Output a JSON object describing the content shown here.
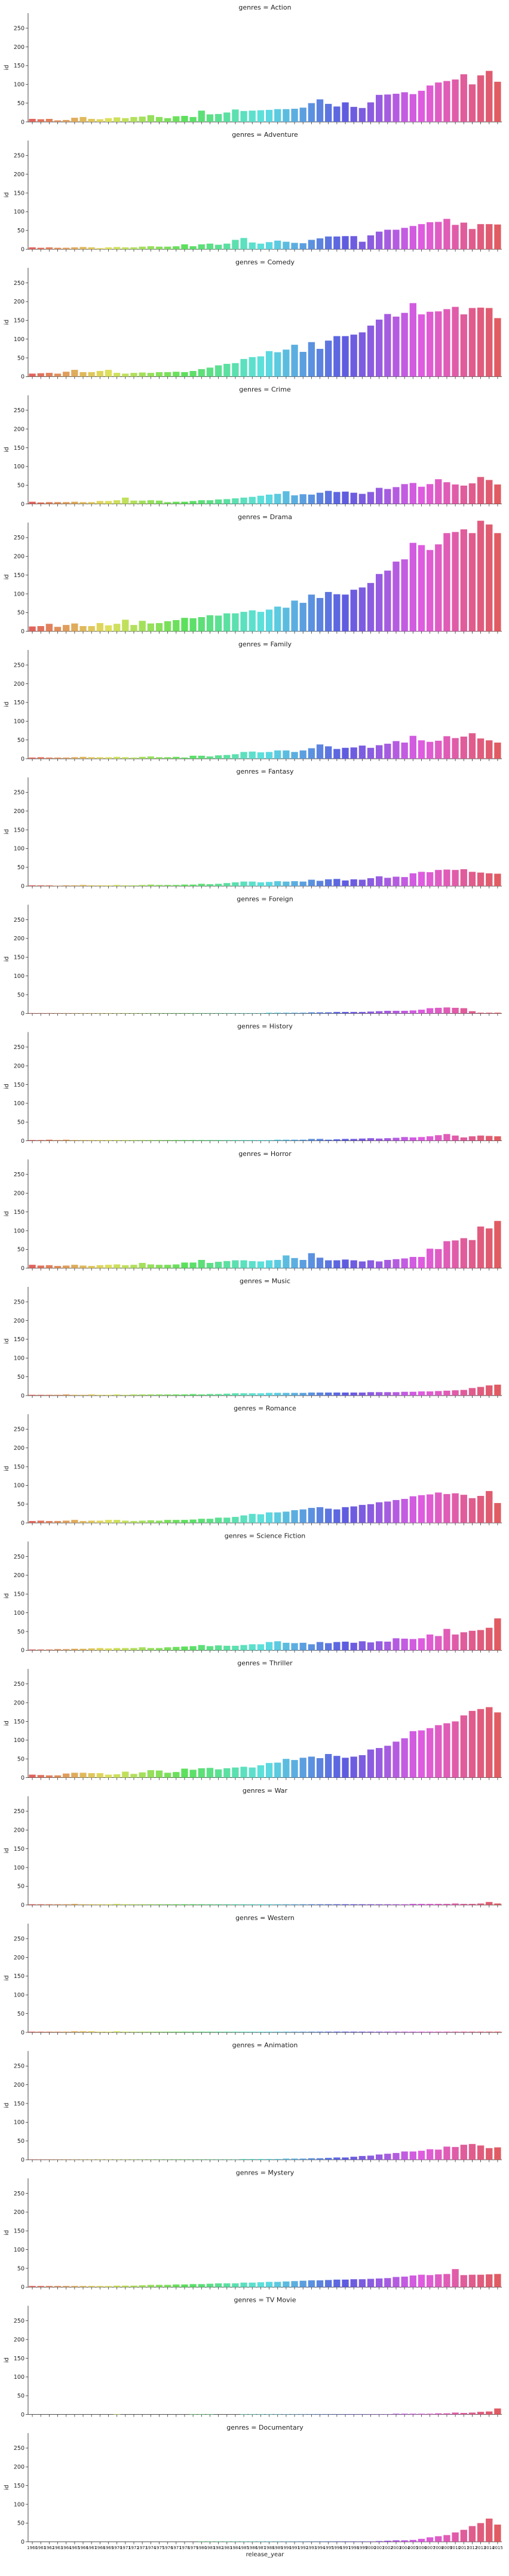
{
  "chart_data": {
    "type": "bar",
    "facet_by": "genres",
    "facet_title_prefix": "genres = ",
    "xlabel": "release_year",
    "ylabel": "id",
    "ylim": [
      0,
      290
    ],
    "yticks": [
      0,
      50,
      100,
      150,
      200,
      250
    ],
    "categories": [
      "1960",
      "1961",
      "1962",
      "1963",
      "1964",
      "1965",
      "1966",
      "1967",
      "1968",
      "1969",
      "1970",
      "1971",
      "1972",
      "1973",
      "1974",
      "1975",
      "1976",
      "1977",
      "1978",
      "1979",
      "1980",
      "1981",
      "1982",
      "1983",
      "1984",
      "1985",
      "1986",
      "1987",
      "1988",
      "1989",
      "1990",
      "1991",
      "1992",
      "1993",
      "1994",
      "1995",
      "1996",
      "1997",
      "1998",
      "1999",
      "2000",
      "2001",
      "2002",
      "2003",
      "2004",
      "2005",
      "2006",
      "2007",
      "2008",
      "2009",
      "2010",
      "2011",
      "2012",
      "2013",
      "2014",
      "2015"
    ],
    "facets": [
      {
        "genre": "Action",
        "values": [
          8,
          7,
          8,
          4,
          5,
          11,
          13,
          8,
          7,
          10,
          12,
          10,
          13,
          14,
          18,
          13,
          10,
          15,
          16,
          13,
          30,
          20,
          21,
          25,
          33,
          29,
          30,
          31,
          32,
          34,
          34,
          35,
          38,
          50,
          60,
          48,
          41,
          52,
          40,
          37,
          52,
          72,
          73,
          75,
          79,
          74,
          83,
          97,
          105,
          109,
          113,
          127,
          100,
          124,
          136,
          107
        ]
      },
      {
        "genre": "Adventure",
        "values": [
          5,
          4,
          5,
          4,
          4,
          5,
          6,
          5,
          3,
          5,
          6,
          5,
          5,
          7,
          8,
          7,
          7,
          8,
          13,
          8,
          13,
          15,
          12,
          15,
          25,
          30,
          18,
          15,
          19,
          23,
          20,
          17,
          16,
          25,
          29,
          34,
          34,
          35,
          35,
          20,
          37,
          47,
          52,
          52,
          57,
          62,
          67,
          72,
          73,
          81,
          65,
          71,
          54,
          67,
          67,
          66
        ]
      },
      {
        "genre": "Comedy",
        "values": [
          8,
          9,
          10,
          8,
          13,
          18,
          12,
          12,
          15,
          18,
          10,
          8,
          10,
          11,
          10,
          12,
          12,
          13,
          12,
          15,
          20,
          24,
          30,
          34,
          36,
          47,
          52,
          54,
          68,
          65,
          72,
          85,
          66,
          92,
          74,
          96,
          108,
          108,
          112,
          118,
          136,
          152,
          167,
          160,
          170,
          196,
          166,
          173,
          174,
          180,
          186,
          166,
          183,
          184,
          183,
          156
        ]
      },
      {
        "genre": "Crime",
        "values": [
          6,
          4,
          5,
          5,
          5,
          6,
          5,
          5,
          8,
          8,
          10,
          17,
          9,
          9,
          10,
          9,
          5,
          6,
          6,
          8,
          10,
          10,
          12,
          13,
          15,
          17,
          19,
          22,
          25,
          27,
          34,
          23,
          26,
          25,
          30,
          35,
          32,
          33,
          30,
          27,
          32,
          43,
          40,
          45,
          53,
          56,
          46,
          53,
          66,
          58,
          52,
          49,
          55,
          72,
          64,
          52
        ]
      },
      {
        "genre": "Drama",
        "values": [
          13,
          14,
          20,
          12,
          17,
          21,
          14,
          14,
          22,
          16,
          20,
          31,
          17,
          28,
          21,
          22,
          27,
          30,
          36,
          35,
          38,
          43,
          42,
          48,
          48,
          52,
          56,
          52,
          58,
          66,
          63,
          82,
          76,
          98,
          89,
          105,
          99,
          98,
          111,
          117,
          129,
          153,
          162,
          186,
          192,
          236,
          230,
          217,
          232,
          262,
          265,
          272,
          262,
          295,
          285,
          262
        ]
      },
      {
        "genre": "Family",
        "values": [
          3,
          4,
          3,
          3,
          3,
          4,
          5,
          4,
          4,
          4,
          5,
          4,
          3,
          5,
          6,
          4,
          4,
          5,
          3,
          8,
          8,
          6,
          9,
          10,
          12,
          18,
          19,
          17,
          18,
          22,
          22,
          18,
          22,
          28,
          38,
          33,
          26,
          29,
          30,
          35,
          29,
          36,
          40,
          47,
          43,
          61,
          49,
          45,
          48,
          60,
          55,
          59,
          68,
          54,
          49,
          43
        ]
      },
      {
        "genre": "Fantasy",
        "values": [
          2,
          2,
          2,
          1,
          2,
          2,
          3,
          2,
          2,
          2,
          3,
          2,
          2,
          3,
          4,
          3,
          3,
          3,
          4,
          4,
          6,
          5,
          6,
          8,
          10,
          12,
          12,
          10,
          11,
          13,
          12,
          13,
          12,
          17,
          14,
          18,
          19,
          15,
          18,
          17,
          21,
          26,
          22,
          25,
          24,
          34,
          38,
          37,
          43,
          44,
          43,
          45,
          38,
          36,
          34,
          33
        ]
      },
      {
        "genre": "Foreign",
        "values": [
          1,
          1,
          1,
          1,
          1,
          1,
          1,
          1,
          1,
          1,
          1,
          1,
          1,
          1,
          1,
          1,
          1,
          1,
          1,
          1,
          1,
          1,
          1,
          1,
          1,
          1,
          1,
          1,
          2,
          2,
          2,
          2,
          2,
          3,
          3,
          3,
          4,
          4,
          4,
          4,
          5,
          6,
          7,
          7,
          7,
          8,
          10,
          14,
          15,
          16,
          15,
          14,
          6,
          2,
          2,
          2
        ]
      },
      {
        "genre": "History",
        "values": [
          2,
          2,
          3,
          2,
          3,
          2,
          2,
          2,
          2,
          2,
          2,
          2,
          2,
          2,
          2,
          2,
          2,
          2,
          2,
          2,
          2,
          2,
          2,
          2,
          2,
          2,
          2,
          2,
          2,
          3,
          3,
          3,
          3,
          5,
          5,
          3,
          4,
          5,
          5,
          6,
          7,
          6,
          7,
          8,
          10,
          9,
          10,
          12,
          15,
          18,
          14,
          9,
          12,
          14,
          13,
          12
        ]
      },
      {
        "genre": "Horror",
        "values": [
          9,
          7,
          8,
          6,
          7,
          9,
          7,
          6,
          8,
          9,
          10,
          8,
          9,
          14,
          10,
          9,
          9,
          10,
          15,
          15,
          22,
          14,
          17,
          19,
          21,
          21,
          19,
          18,
          21,
          22,
          34,
          27,
          22,
          40,
          28,
          21,
          21,
          23,
          21,
          18,
          21,
          18,
          22,
          24,
          26,
          30,
          30,
          52,
          51,
          72,
          74,
          80,
          75,
          111,
          106,
          126
        ]
      },
      {
        "genre": "Music",
        "values": [
          2,
          2,
          2,
          2,
          3,
          2,
          2,
          3,
          2,
          2,
          3,
          2,
          3,
          3,
          3,
          3,
          3,
          3,
          3,
          4,
          3,
          4,
          4,
          5,
          6,
          6,
          6,
          6,
          7,
          7,
          7,
          7,
          7,
          8,
          8,
          8,
          8,
          8,
          8,
          8,
          9,
          9,
          9,
          9,
          10,
          10,
          11,
          11,
          12,
          13,
          14,
          15,
          20,
          23,
          27,
          29
        ]
      },
      {
        "genre": "Romance",
        "values": [
          5,
          6,
          5,
          5,
          6,
          8,
          5,
          6,
          6,
          8,
          8,
          6,
          5,
          6,
          7,
          6,
          8,
          8,
          8,
          9,
          11,
          11,
          14,
          14,
          16,
          20,
          24,
          23,
          28,
          28,
          30,
          34,
          36,
          40,
          42,
          38,
          36,
          42,
          44,
          48,
          50,
          55,
          57,
          61,
          64,
          71,
          74,
          76,
          81,
          77,
          79,
          75,
          66,
          72,
          85,
          53
        ]
      },
      {
        "genre": "Science Fiction",
        "values": [
          2,
          2,
          2,
          3,
          3,
          4,
          4,
          5,
          6,
          5,
          6,
          6,
          6,
          8,
          6,
          6,
          8,
          9,
          10,
          11,
          14,
          11,
          13,
          12,
          12,
          14,
          16,
          16,
          22,
          24,
          20,
          19,
          20,
          16,
          22,
          19,
          22,
          23,
          20,
          24,
          21,
          24,
          23,
          32,
          31,
          30,
          32,
          42,
          38,
          57,
          42,
          48,
          52,
          54,
          60,
          85
        ]
      },
      {
        "genre": "Thriller",
        "values": [
          8,
          7,
          6,
          6,
          11,
          13,
          13,
          12,
          12,
          8,
          9,
          16,
          10,
          14,
          20,
          19,
          13,
          15,
          24,
          21,
          25,
          26,
          22,
          25,
          27,
          29,
          27,
          33,
          39,
          40,
          50,
          47,
          53,
          56,
          52,
          63,
          58,
          53,
          56,
          60,
          75,
          79,
          85,
          96,
          105,
          124,
          126,
          132,
          140,
          145,
          150,
          166,
          178,
          183,
          188,
          174
        ]
      },
      {
        "genre": "War",
        "values": [
          2,
          2,
          2,
          2,
          2,
          3,
          2,
          2,
          2,
          2,
          3,
          2,
          2,
          2,
          2,
          2,
          2,
          2,
          2,
          2,
          2,
          2,
          2,
          2,
          2,
          2,
          2,
          2,
          2,
          2,
          2,
          2,
          2,
          2,
          2,
          2,
          2,
          2,
          2,
          2,
          2,
          2,
          2,
          2,
          2,
          3,
          3,
          3,
          3,
          3,
          4,
          3,
          3,
          4,
          8,
          4
        ]
      },
      {
        "genre": "Western",
        "values": [
          2,
          2,
          2,
          2,
          2,
          3,
          3,
          3,
          2,
          2,
          3,
          2,
          2,
          2,
          2,
          2,
          2,
          2,
          2,
          2,
          2,
          2,
          2,
          2,
          2,
          2,
          2,
          2,
          2,
          2,
          2,
          2,
          2,
          2,
          2,
          2,
          2,
          2,
          2,
          2,
          2,
          2,
          2,
          2,
          2,
          2,
          2,
          2,
          2,
          2,
          2,
          2,
          2,
          2,
          2,
          2
        ]
      },
      {
        "genre": "Animation",
        "values": [
          1,
          1,
          1,
          1,
          1,
          1,
          1,
          1,
          1,
          1,
          1,
          1,
          1,
          1,
          1,
          1,
          1,
          1,
          1,
          1,
          1,
          1,
          1,
          1,
          1,
          2,
          2,
          2,
          2,
          2,
          3,
          3,
          3,
          4,
          4,
          5,
          6,
          6,
          8,
          10,
          11,
          14,
          16,
          18,
          22,
          22,
          24,
          28,
          27,
          35,
          34,
          40,
          42,
          38,
          31,
          33
        ]
      },
      {
        "genre": "Mystery",
        "values": [
          3,
          3,
          3,
          3,
          3,
          3,
          3,
          3,
          3,
          3,
          4,
          4,
          4,
          5,
          6,
          6,
          6,
          7,
          7,
          8,
          8,
          9,
          10,
          10,
          10,
          12,
          12,
          13,
          14,
          14,
          15,
          16,
          17,
          18,
          18,
          19,
          20,
          20,
          21,
          21,
          22,
          23,
          24,
          27,
          28,
          31,
          33,
          32,
          34,
          35,
          48,
          32,
          33,
          33,
          34,
          35
        ]
      },
      {
        "genre": "TV Movie",
        "values": [
          0,
          0,
          0,
          0,
          0,
          0,
          0,
          0,
          0,
          0,
          1,
          0,
          0,
          0,
          0,
          0,
          0,
          0,
          0,
          1,
          1,
          1,
          0,
          0,
          0,
          1,
          1,
          1,
          1,
          1,
          1,
          1,
          1,
          1,
          1,
          1,
          1,
          1,
          1,
          1,
          1,
          1,
          1,
          2,
          2,
          2,
          2,
          2,
          3,
          3,
          5,
          4,
          5,
          7,
          8,
          16
        ]
      },
      {
        "genre": "Documentary",
        "values": [
          0,
          0,
          0,
          0,
          0,
          0,
          0,
          0,
          0,
          0,
          0,
          0,
          0,
          0,
          0,
          0,
          0,
          0,
          0,
          0,
          1,
          1,
          1,
          1,
          1,
          1,
          1,
          1,
          1,
          1,
          1,
          1,
          1,
          1,
          1,
          1,
          1,
          1,
          1,
          1,
          1,
          2,
          3,
          4,
          4,
          5,
          8,
          12,
          15,
          18,
          25,
          32,
          42,
          50,
          62,
          46
        ]
      }
    ]
  }
}
